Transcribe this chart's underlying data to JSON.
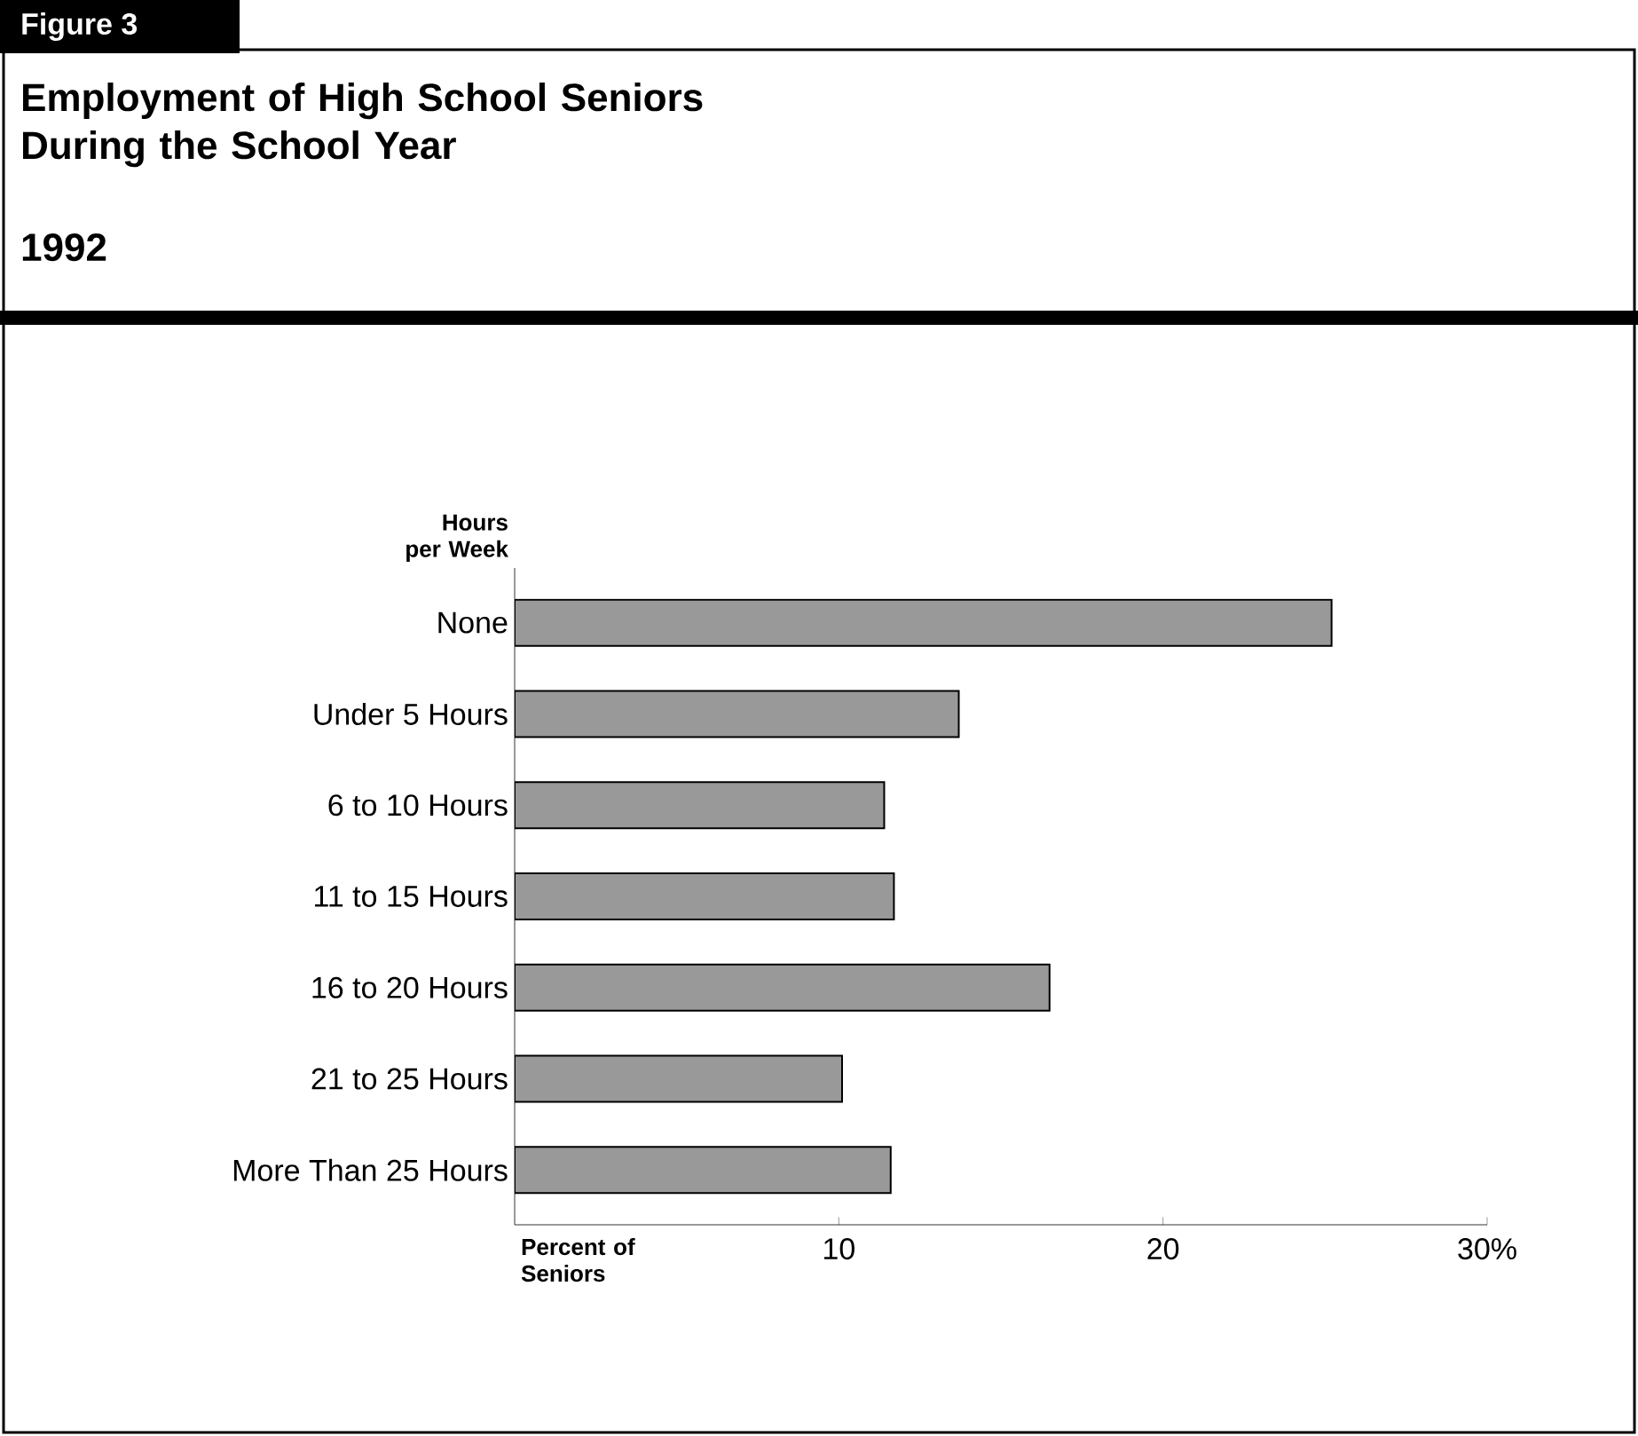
{
  "chart_data": {
    "type": "bar",
    "orientation": "horizontal",
    "title": "Employment of High School Seniors During the School Year",
    "subtitle": "1992",
    "annotations": [
      "Figure 3"
    ],
    "ylabel": "Hours per Week",
    "xlabel": "Percent of Seniors",
    "categories": [
      "None",
      "Under 5 Hours",
      "6 to 10 Hours",
      "11 to 15 Hours",
      "16 to 20 Hours",
      "21 to 25 Hours",
      "More Than 25 Hours"
    ],
    "values": [
      25.2,
      13.7,
      11.4,
      11.7,
      16.5,
      10.1,
      11.6
    ],
    "color": "#999999",
    "xlim": [
      0,
      30
    ],
    "xticks": [
      10,
      20,
      {
        "value": 30,
        "label": "30%"
      }
    ],
    "grid": false
  }
}
